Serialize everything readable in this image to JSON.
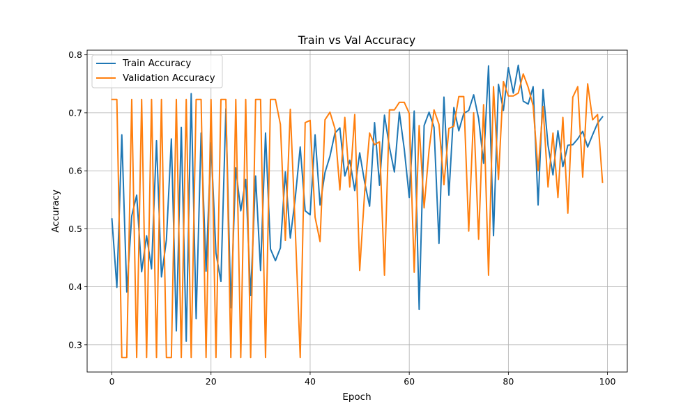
{
  "chart_data": {
    "type": "line",
    "title": "Train vs Val Accuracy",
    "xlabel": "Epoch",
    "ylabel": "Accuracy",
    "xlim": [
      -5,
      104
    ],
    "ylim": [
      0.253,
      0.808
    ],
    "xticks": [
      0,
      20,
      40,
      60,
      80,
      100
    ],
    "yticks": [
      0.3,
      0.4,
      0.5,
      0.6,
      0.7,
      0.8
    ],
    "xtick_labels": [
      "0",
      "20",
      "40",
      "60",
      "80",
      "100"
    ],
    "ytick_labels": [
      "0.3",
      "0.4",
      "0.5",
      "0.6",
      "0.7",
      "0.8"
    ],
    "grid": true,
    "legend_position": "upper-left",
    "x": [
      0,
      1,
      2,
      3,
      4,
      5,
      6,
      7,
      8,
      9,
      10,
      11,
      12,
      13,
      14,
      15,
      16,
      17,
      18,
      19,
      20,
      21,
      22,
      23,
      24,
      25,
      26,
      27,
      28,
      29,
      30,
      31,
      32,
      33,
      34,
      35,
      36,
      37,
      38,
      39,
      40,
      41,
      42,
      43,
      44,
      45,
      46,
      47,
      48,
      49,
      50,
      51,
      52,
      53,
      54,
      55,
      56,
      57,
      58,
      59,
      60,
      61,
      62,
      63,
      64,
      65,
      66,
      67,
      68,
      69,
      70,
      71,
      72,
      73,
      74,
      75,
      76,
      77,
      78,
      79,
      80,
      81,
      82,
      83,
      84,
      85,
      86,
      87,
      88,
      89,
      90,
      91,
      92,
      93,
      94,
      95,
      96,
      97,
      98,
      99
    ],
    "series": [
      {
        "name": "Train Accuracy",
        "color": "#1f77b4",
        "values": [
          0.517,
          0.399,
          0.662,
          0.391,
          0.522,
          0.558,
          0.426,
          0.488,
          0.431,
          0.652,
          0.417,
          0.481,
          0.655,
          0.324,
          0.675,
          0.306,
          0.733,
          0.345,
          0.665,
          0.427,
          0.648,
          0.458,
          0.409,
          0.707,
          0.364,
          0.605,
          0.531,
          0.585,
          0.385,
          0.591,
          0.428,
          0.665,
          0.465,
          0.445,
          0.467,
          0.598,
          0.484,
          0.553,
          0.641,
          0.531,
          0.524,
          0.662,
          0.541,
          0.597,
          0.625,
          0.665,
          0.674,
          0.591,
          0.618,
          0.566,
          0.631,
          0.58,
          0.539,
          0.683,
          0.575,
          0.696,
          0.641,
          0.598,
          0.701,
          0.637,
          0.554,
          0.703,
          0.361,
          0.678,
          0.701,
          0.675,
          0.475,
          0.727,
          0.558,
          0.709,
          0.669,
          0.699,
          0.704,
          0.731,
          0.69,
          0.613,
          0.781,
          0.488,
          0.749,
          0.704,
          0.778,
          0.734,
          0.782,
          0.72,
          0.715,
          0.745,
          0.541,
          0.74,
          0.644,
          0.593,
          0.669,
          0.607,
          0.644,
          0.645,
          0.655,
          0.668,
          0.641,
          0.662,
          0.682,
          0.693
        ]
      },
      {
        "name": "Validation Accuracy",
        "color": "#ff7f0e",
        "values": [
          0.723,
          0.723,
          0.278,
          0.278,
          0.723,
          0.278,
          0.723,
          0.278,
          0.723,
          0.278,
          0.723,
          0.278,
          0.278,
          0.723,
          0.278,
          0.723,
          0.278,
          0.723,
          0.723,
          0.278,
          0.723,
          0.278,
          0.723,
          0.723,
          0.278,
          0.723,
          0.278,
          0.723,
          0.278,
          0.723,
          0.723,
          0.278,
          0.723,
          0.723,
          0.68,
          0.48,
          0.706,
          0.5,
          0.278,
          0.683,
          0.687,
          0.52,
          0.478,
          0.688,
          0.701,
          0.673,
          0.567,
          0.692,
          0.572,
          0.697,
          0.428,
          0.563,
          0.665,
          0.645,
          0.65,
          0.42,
          0.705,
          0.705,
          0.718,
          0.718,
          0.699,
          0.425,
          0.678,
          0.536,
          0.636,
          0.705,
          0.68,
          0.576,
          0.673,
          0.677,
          0.728,
          0.728,
          0.496,
          0.7,
          0.482,
          0.714,
          0.42,
          0.745,
          0.585,
          0.754,
          0.729,
          0.729,
          0.734,
          0.767,
          0.744,
          0.712,
          0.6,
          0.711,
          0.572,
          0.665,
          0.554,
          0.692,
          0.527,
          0.727,
          0.745,
          0.589,
          0.75,
          0.688,
          0.697,
          0.58
        ]
      }
    ]
  }
}
